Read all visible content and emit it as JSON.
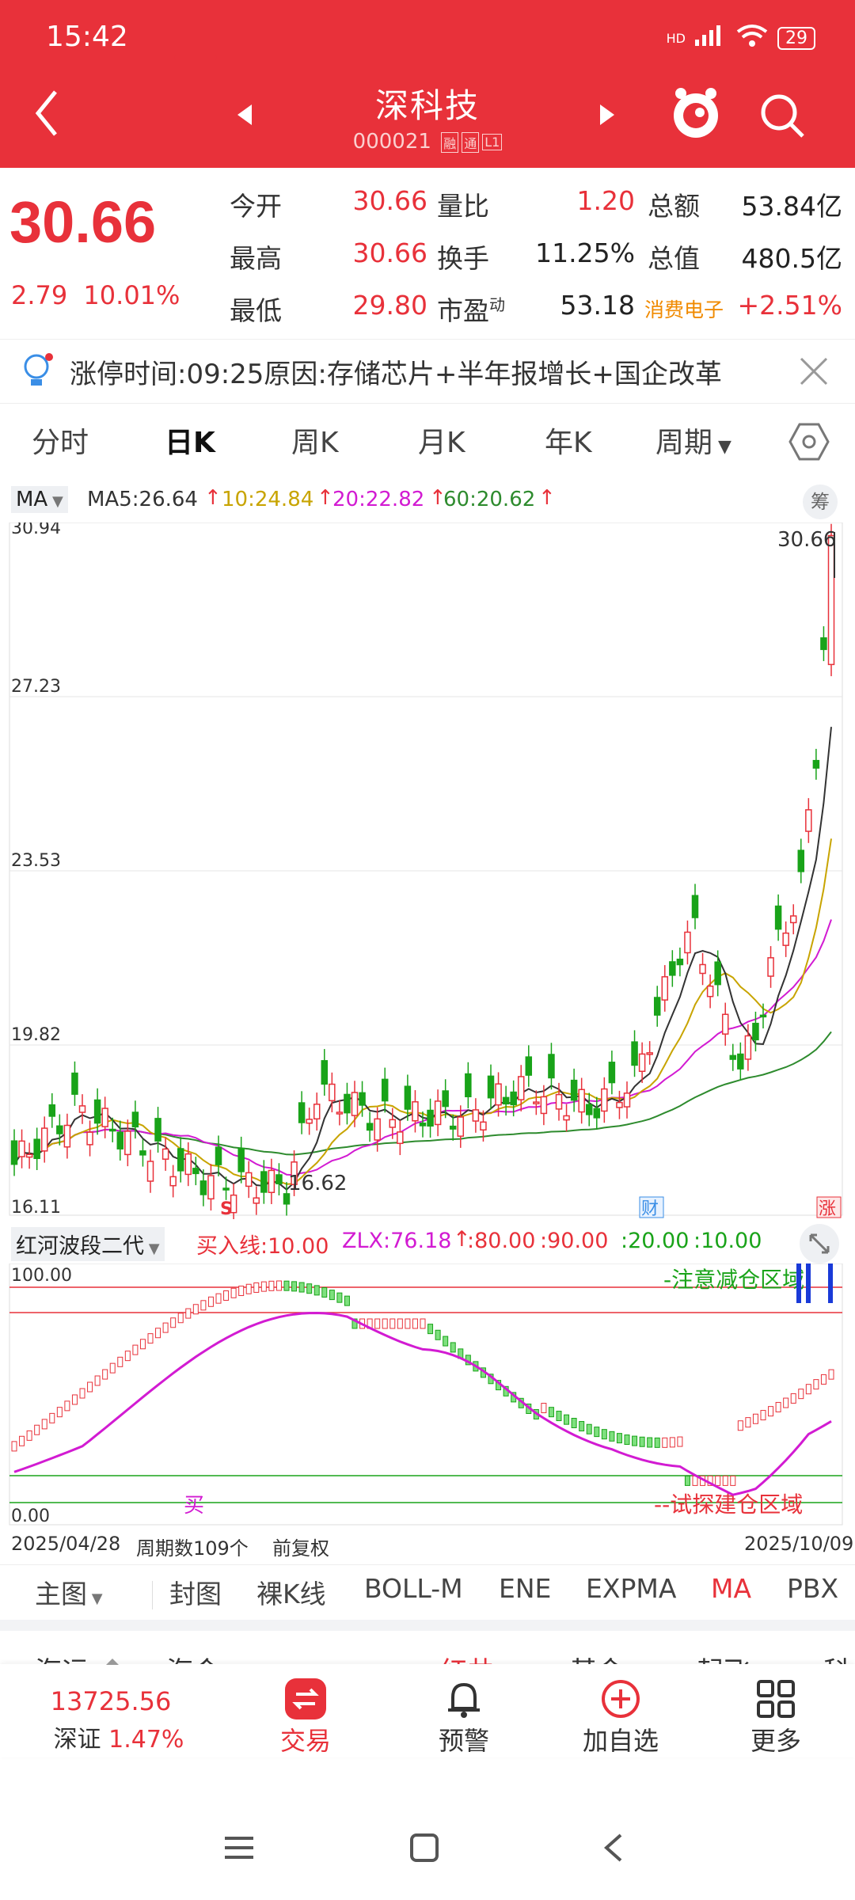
{
  "status": {
    "time": "15:42",
    "battery": "29",
    "signal": "HD"
  },
  "header": {
    "name": "深科技",
    "code": "000021",
    "tags": [
      "融",
      "通",
      "L1"
    ]
  },
  "quote": {
    "price": "30.66",
    "change": "2.79",
    "change_pct": "10.01%",
    "fields": [
      {
        "label": "今开",
        "value": "30.66"
      },
      {
        "label": "量比",
        "value": "1.20"
      },
      {
        "label": "总额",
        "value": "53.84亿"
      },
      {
        "label": "最高",
        "value": "30.66"
      },
      {
        "label": "换手",
        "value": "11.25%"
      },
      {
        "label": "总值",
        "value": "480.5亿"
      },
      {
        "label": "最低",
        "value": "29.80"
      },
      {
        "label": "市盈",
        "label_sup": "动",
        "value": "53.18"
      },
      {
        "label": "消费电子",
        "value": "+2.51%"
      }
    ]
  },
  "banner": {
    "text": "涨停时间:09:25原因:存储芯片+半年报增长+国企改革"
  },
  "tabs": [
    "分时",
    "日K",
    "周K",
    "月K",
    "年K",
    "周期"
  ],
  "ma": {
    "selector": "MA",
    "ma5": "MA5:26.64",
    "ma10": "10:24.84",
    "ma20": "20:22.82",
    "ma60": "60:20.62",
    "chip_label": "筹"
  },
  "price_axis": [
    "30.94",
    "27.23",
    "23.53",
    "19.82",
    "16.11"
  ],
  "chart_labels": {
    "high_mark": "30.66",
    "low_mark": "16.62",
    "sell_mark": "S",
    "fin_mark": "财",
    "limit_mark": "涨"
  },
  "indicator": {
    "name": "红河波段二代",
    "buy_line": "买入线:10.00",
    "zlx": "ZLX:76.18",
    "v80": ":80.00",
    "v90": ":90.00",
    "v20": ":20.00",
    "v10": ":10.00",
    "top_label": "100.00",
    "bottom_label": "0.00",
    "zone_reduce": "-注意减仓区域",
    "zone_build": "--试探建仓区域",
    "buy_mark": "买"
  },
  "axis_row": {
    "start": "2025/04/28",
    "count": "周期数109个",
    "adj": "前复权",
    "end": "2025/10/09"
  },
  "tools": [
    "主图",
    "封图",
    "裸K线",
    "BOLL-M",
    "ENE",
    "EXPMA",
    "MA",
    "PBX"
  ],
  "hidden_row": [
    "海运",
    "海会",
    "红井",
    "基金",
    "起飞",
    "科"
  ],
  "bottom_nav": {
    "index_value": "13725.56",
    "index_name": "深证",
    "index_pct": "1.47%",
    "trade": "交易",
    "alert": "预警",
    "add": "加自选",
    "more": "更多"
  },
  "colors": {
    "brand_red": "#e8313a",
    "up": "#e8313a",
    "down": "#19a319",
    "ma5": "#333333",
    "ma10": "#c8a400",
    "ma20": "#d21bd2",
    "ma60": "#2e8b2e"
  },
  "chart_data": {
    "type": "candlestick",
    "x_start": "2025/04/28",
    "x_end": "2025/10/09",
    "ylim": [
      16.11,
      30.94
    ],
    "last_close": 30.66,
    "period_low": 16.62,
    "ma_last": {
      "MA5": 26.64,
      "MA10": 24.84,
      "MA20": 22.82,
      "MA60": 20.62
    }
  }
}
